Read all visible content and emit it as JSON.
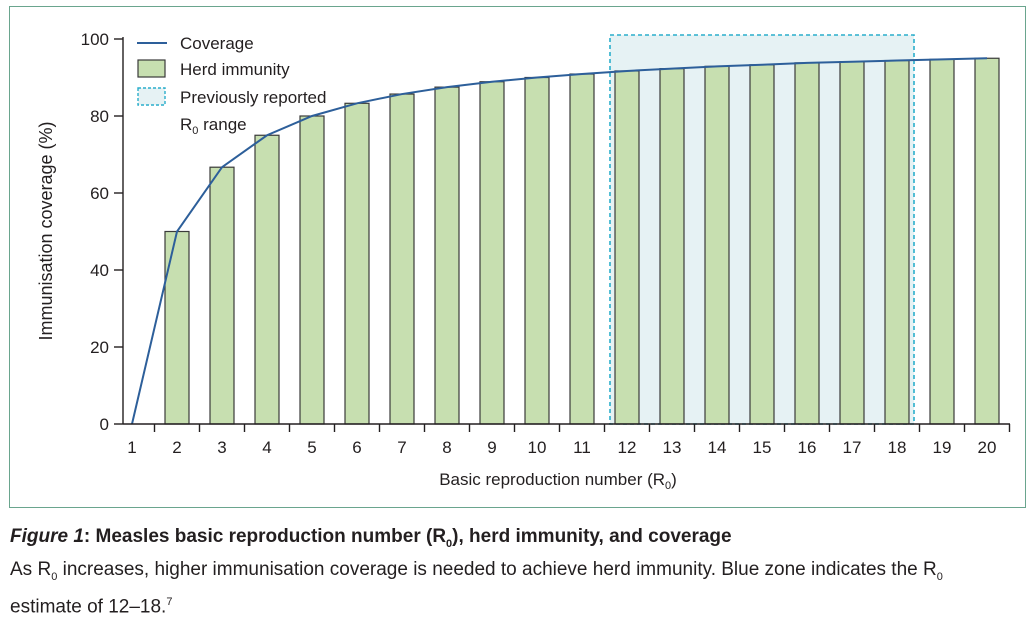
{
  "chart_data": {
    "type": "bar",
    "x": [
      1,
      2,
      3,
      4,
      5,
      6,
      7,
      8,
      9,
      10,
      11,
      12,
      13,
      14,
      15,
      16,
      17,
      18,
      19,
      20
    ],
    "categories": [
      "1",
      "2",
      "3",
      "4",
      "5",
      "6",
      "7",
      "8",
      "9",
      "10",
      "11",
      "12",
      "13",
      "14",
      "15",
      "16",
      "17",
      "18",
      "19",
      "20"
    ],
    "series": [
      {
        "name": "Herd immunity",
        "type": "bar",
        "values": [
          null,
          50,
          66.7,
          75,
          80,
          83.3,
          85.7,
          87.5,
          88.9,
          90,
          90.9,
          91.7,
          92.3,
          92.9,
          93.3,
          93.8,
          94.1,
          94.4,
          94.7,
          95
        ]
      },
      {
        "name": "Coverage",
        "type": "line",
        "values": [
          0,
          50,
          66.7,
          75,
          80,
          83.3,
          85.7,
          87.5,
          88.9,
          90,
          90.9,
          91.7,
          92.3,
          92.9,
          93.3,
          93.8,
          94.1,
          94.4,
          94.7,
          95
        ]
      }
    ],
    "shaded_region": {
      "name": "Previously reported",
      "name_line2": "R",
      "name_line2_sub": "0",
      "name_line2_rest": " range",
      "x_from": 12,
      "x_to": 18
    },
    "ylim": [
      0,
      100
    ],
    "yticks": [
      0,
      20,
      40,
      60,
      80,
      100
    ],
    "ylabel": "Immunisation coverage (%)",
    "xlabel_main": "Basic reproduction number (R",
    "xlabel_sub": "0",
    "xlabel_end": ")",
    "legend_position": "top-left",
    "grid": false,
    "colors": {
      "line": "#2d5f9a",
      "bar_fill": "#c7dfb0",
      "bar_stroke": "#3a3a3a",
      "region_fill": "#e6f2f4",
      "region_stroke": "#2aaecb",
      "frame": "#6aa58e"
    }
  },
  "caption": {
    "figure_label": "Figure 1",
    "title_colon": ": ",
    "title_start": "Measles basic reproduction number (R",
    "title_sub": "0",
    "title_end": "), herd immunity, and coverage",
    "body1_a": "As R",
    "body1_sub1": "0",
    "body1_b": " increases, higher immunisation coverage is needed to achieve herd immunity. Blue zone indicates the R",
    "body1_sub2": "0",
    "body2_a": "estimate of 12–18.",
    "body2_sup": "7"
  }
}
